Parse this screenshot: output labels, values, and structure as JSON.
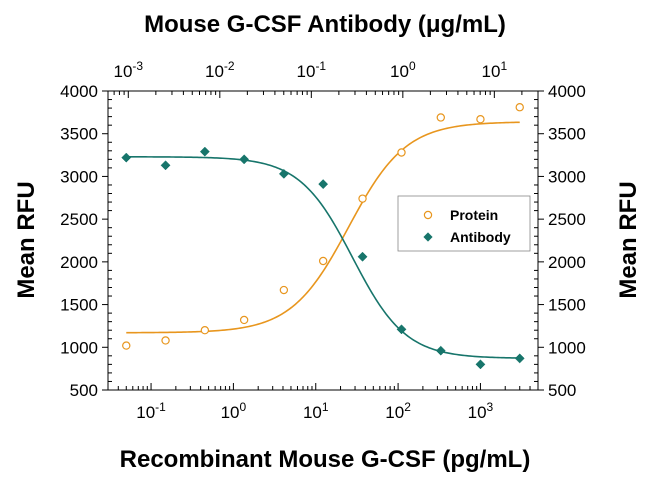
{
  "chart_data": {
    "type": "scatter",
    "title_top": "Mouse G-CSF Antibody (μg/mL)",
    "xlabel": "Recombinant Mouse G-CSF (pg/mL)",
    "ylabel_left": "Mean RFU",
    "ylabel_right": "Mean RFU",
    "x_scale": "log",
    "xlim": [
      0.03,
      5000
    ],
    "ylim": [
      500,
      4000
    ],
    "yticks": [
      500,
      1000,
      1500,
      2000,
      2500,
      3000,
      3500,
      4000
    ],
    "xticks_bottom": [
      {
        "value": 0.1,
        "base": "10",
        "exp": "-1"
      },
      {
        "value": 1,
        "base": "10",
        "exp": "0"
      },
      {
        "value": 10,
        "base": "10",
        "exp": "1"
      },
      {
        "value": 100,
        "base": "10",
        "exp": "2"
      },
      {
        "value": 1000,
        "base": "10",
        "exp": "3"
      }
    ],
    "xticks_top": [
      {
        "value": 0.001,
        "base": "10",
        "exp": "-3"
      },
      {
        "value": 0.01,
        "base": "10",
        "exp": "-2"
      },
      {
        "value": 0.1,
        "base": "10",
        "exp": "-1"
      },
      {
        "value": 1,
        "base": "10",
        "exp": "0"
      },
      {
        "value": 10,
        "base": "10",
        "exp": "1"
      }
    ],
    "top_axis_range": [
      0.0006,
      30
    ],
    "legend_position": "right",
    "series": [
      {
        "name": "Protein",
        "marker": "open-circle",
        "color": "#e8961e",
        "x": [
          0.05,
          0.15,
          0.45,
          1.35,
          4.1,
          12.3,
          37,
          110,
          330,
          1000,
          3000
        ],
        "y": [
          1020,
          1080,
          1200,
          1320,
          1670,
          2010,
          2740,
          3280,
          3690,
          3670,
          3810
        ],
        "fit": {
          "bottom": 1170,
          "top": 3640,
          "ec50": 25,
          "hill": 1.25
        }
      },
      {
        "name": "Antibody",
        "marker": "filled-diamond",
        "color": "#17756b",
        "x": [
          0.05,
          0.15,
          0.45,
          1.35,
          4.1,
          12.3,
          37,
          110,
          330,
          1000,
          3000
        ],
        "y": [
          3220,
          3130,
          3290,
          3200,
          3030,
          2910,
          2060,
          1210,
          960,
          800,
          870
        ],
        "fit": {
          "bottom": 870,
          "top": 3230,
          "ec50": 28,
          "hill": 1.35
        }
      }
    ]
  }
}
